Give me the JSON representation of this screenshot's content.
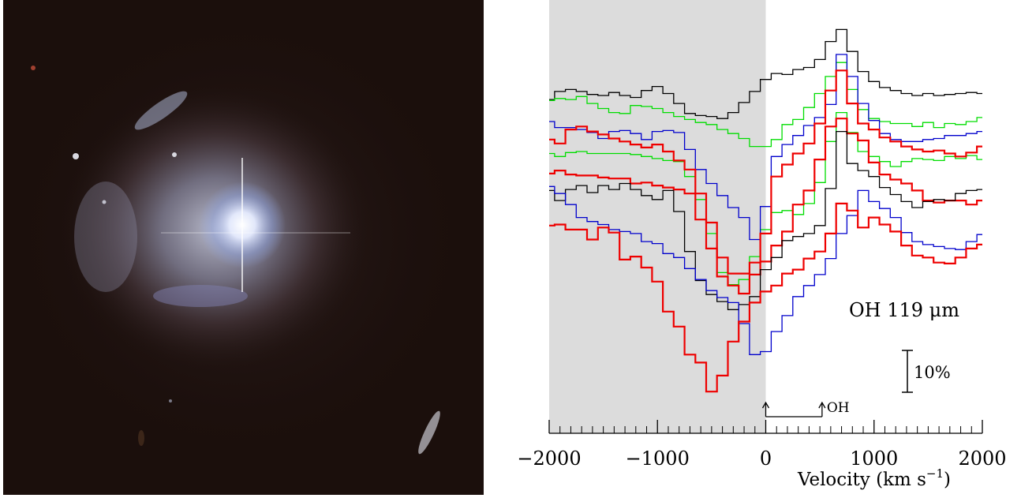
{
  "photo": {
    "description_icon": "galaxy-image"
  },
  "chart_data": {
    "type": "line",
    "style": "step",
    "xlabel": "Velocity (km s",
    "xlabel_superscript": "−1",
    "xlabel_close": ")",
    "xlim": [
      -2000,
      2000
    ],
    "xticks": [
      -2000,
      -1000,
      0,
      1000,
      2000
    ],
    "xtick_labels": [
      "−2000",
      "−1000",
      "0",
      "1000",
      "2000"
    ],
    "shaded_region": [
      -2000,
      0
    ],
    "shaded_color": "#dcdcdc",
    "annotation_line": "OH 119 μm",
    "scale_bar_label": "10%",
    "marker_label": "OH",
    "marker_positions": [
      0,
      520
    ],
    "yaxis_visible": false,
    "grid": false,
    "series": [
      {
        "color": "#000000",
        "width": 1.3,
        "x": [
          -2000,
          -1900,
          -1800,
          -1700,
          -1600,
          -1500,
          -1400,
          -1300,
          -1200,
          -1100,
          -1000,
          -900,
          -800,
          -700,
          -600,
          -500,
          -400,
          -300,
          -200,
          -100,
          0,
          100,
          200,
          300,
          400,
          500,
          600,
          700,
          800,
          900,
          1000,
          1100,
          1200,
          1300,
          1400,
          1500,
          1600,
          1700,
          1800,
          1900,
          2000
        ],
        "y": [
          29.0,
          29.8,
          30.0,
          29.8,
          29.5,
          29.4,
          29.7,
          29.4,
          29.2,
          29.9,
          30.3,
          29.6,
          28.6,
          27.6,
          27.4,
          27.3,
          27.1,
          27.7,
          28.7,
          29.8,
          31.0,
          31.6,
          31.5,
          32.0,
          32.2,
          33.0,
          34.8,
          36.0,
          33.8,
          31.8,
          30.8,
          30.2,
          29.9,
          29.6,
          29.4,
          29.6,
          29.4,
          29.5,
          29.6,
          29.7,
          29.6
        ]
      },
      {
        "color": "#00dd00",
        "width": 1.3,
        "x": [
          -2000,
          -1900,
          -1800,
          -1700,
          -1600,
          -1500,
          -1400,
          -1300,
          -1200,
          -1100,
          -1000,
          -900,
          -800,
          -700,
          -600,
          -500,
          -400,
          -300,
          -200,
          -100,
          0,
          100,
          200,
          300,
          400,
          500,
          600,
          700,
          800,
          900,
          1000,
          1100,
          1200,
          1300,
          1400,
          1500,
          1600,
          1700,
          1800,
          1900,
          2000
        ],
        "y": [
          28.9,
          29.1,
          29.0,
          29.3,
          28.6,
          28.1,
          27.7,
          27.6,
          28.4,
          28.3,
          28.1,
          27.7,
          27.3,
          27.0,
          26.7,
          26.5,
          26.0,
          25.6,
          25.1,
          24.3,
          24.3,
          25.0,
          26.5,
          27.0,
          28.2,
          29.6,
          31.3,
          32.7,
          30.0,
          28.0,
          27.1,
          26.8,
          26.6,
          26.6,
          26.3,
          26.7,
          26.2,
          26.6,
          26.5,
          26.8,
          27.2
        ]
      },
      {
        "color": "#00dd00",
        "width": 1.3,
        "x": [
          -2000,
          -1900,
          -1800,
          -1700,
          -1600,
          -1500,
          -1400,
          -1300,
          -1200,
          -1100,
          -1000,
          -900,
          -800,
          -700,
          -600,
          -500,
          -400,
          -300,
          -200,
          -100,
          0,
          100,
          200,
          300,
          400,
          500,
          600,
          700,
          800,
          900,
          1000,
          1100,
          1200,
          1300,
          1400,
          1500,
          1600,
          1700,
          1800,
          1900,
          2000
        ],
        "y": [
          23.6,
          23.3,
          23.7,
          23.8,
          23.6,
          23.6,
          23.6,
          23.6,
          23.5,
          23.3,
          23.1,
          22.9,
          22.8,
          21.3,
          19.0,
          15.6,
          11.7,
          10.5,
          11.0,
          13.3,
          16.0,
          17.7,
          17.9,
          17.5,
          18.6,
          20.7,
          24.8,
          27.7,
          25.7,
          23.8,
          23.3,
          22.8,
          22.3,
          22.8,
          23.1,
          23.0,
          22.9,
          23.3,
          23.1,
          23.4,
          23.0
        ]
      },
      {
        "color": "#0000cc",
        "width": 1.3,
        "x": [
          -2000,
          -1900,
          -1800,
          -1700,
          -1600,
          -1500,
          -1400,
          -1300,
          -1200,
          -1100,
          -1000,
          -900,
          -800,
          -700,
          -600,
          -500,
          -400,
          -300,
          -200,
          -100,
          0,
          100,
          200,
          300,
          400,
          500,
          600,
          700,
          800,
          900,
          1000,
          1100,
          1200,
          1300,
          1400,
          1500,
          1600,
          1700,
          1800,
          1900,
          2000
        ],
        "y": [
          26.8,
          26.2,
          26.2,
          26.0,
          25.7,
          25.1,
          25.8,
          25.9,
          25.6,
          25.0,
          25.8,
          25.9,
          25.7,
          24.0,
          22.0,
          20.6,
          19.4,
          18.2,
          17.2,
          15.0,
          18.3,
          23.3,
          24.5,
          25.4,
          26.4,
          27.2,
          28.5,
          33.5,
          31.3,
          28.6,
          26.9,
          25.6,
          25.0,
          24.8,
          24.8,
          25.0,
          25.1,
          25.4,
          25.4,
          25.6,
          25.8
        ]
      },
      {
        "color": "#ee0000",
        "width": 2.2,
        "x": [
          -2000,
          -1900,
          -1800,
          -1700,
          -1600,
          -1500,
          -1400,
          -1300,
          -1200,
          -1100,
          -1000,
          -900,
          -800,
          -700,
          -600,
          -500,
          -400,
          -300,
          -200,
          -100,
          0,
          100,
          200,
          300,
          400,
          500,
          600,
          700,
          800,
          900,
          1000,
          1100,
          1200,
          1300,
          1400,
          1500,
          1600,
          1700,
          1800,
          1900,
          2000
        ],
        "y": [
          25.0,
          24.6,
          26.0,
          26.3,
          25.8,
          25.5,
          25.1,
          24.8,
          24.5,
          24.2,
          24.5,
          23.8,
          22.9,
          22.0,
          19.6,
          16.7,
          13.2,
          11.6,
          11.6,
          12.7,
          15.6,
          21.3,
          22.5,
          23.6,
          24.6,
          26.6,
          29.9,
          31.9,
          28.6,
          26.6,
          26.0,
          25.2,
          24.8,
          24.3,
          24.0,
          23.8,
          23.9,
          23.6,
          23.3,
          23.7,
          24.3
        ]
      },
      {
        "color": "#ee0000",
        "width": 2.2,
        "x": [
          -2000,
          -1900,
          -1800,
          -1700,
          -1600,
          -1500,
          -1400,
          -1300,
          -1200,
          -1100,
          -1000,
          -900,
          -800,
          -700,
          -600,
          -500,
          -400,
          -300,
          -200,
          -100,
          0,
          100,
          200,
          300,
          400,
          500,
          600,
          700,
          800,
          900,
          1000,
          1100,
          1200,
          1300,
          1400,
          1500,
          1600,
          1700,
          1800,
          1900,
          2000
        ],
        "y": [
          21.6,
          21.9,
          21.5,
          21.4,
          21.4,
          21.2,
          21.1,
          21.1,
          20.6,
          20.7,
          20.4,
          20.2,
          20.0,
          19.6,
          17.0,
          14.1,
          11.3,
          10.4,
          9.6,
          11.5,
          12.8,
          14.4,
          15.8,
          18.5,
          19.9,
          23.0,
          26.3,
          27.1,
          25.6,
          24.9,
          22.7,
          21.5,
          21.0,
          20.6,
          19.9,
          18.9,
          18.7,
          18.9,
          18.9,
          18.5,
          18.9
        ]
      },
      {
        "color": "#000000",
        "width": 1.3,
        "x": [
          -2000,
          -1900,
          -1800,
          -1700,
          -1600,
          -1500,
          -1400,
          -1300,
          -1200,
          -1100,
          -1000,
          -900,
          -800,
          -700,
          -600,
          -500,
          -400,
          -300,
          -200,
          -100,
          0,
          100,
          200,
          300,
          400,
          500,
          600,
          700,
          800,
          900,
          1000,
          1100,
          1200,
          1300,
          1400,
          1500,
          1600,
          1700,
          1800,
          1900,
          2000
        ],
        "y": [
          19.9,
          18.9,
          20.0,
          20.4,
          19.7,
          20.4,
          20.0,
          20.6,
          20.0,
          19.4,
          19.0,
          19.9,
          17.8,
          13.8,
          10.9,
          9.5,
          8.8,
          8.0,
          8.5,
          9.3,
          12.0,
          13.2,
          14.9,
          15.3,
          15.6,
          16.4,
          20.1,
          25.8,
          22.6,
          21.9,
          21.3,
          20.2,
          19.5,
          18.8,
          18.2,
          18.8,
          19.0,
          18.9,
          19.6,
          19.9,
          20.0
        ]
      },
      {
        "color": "#0000cc",
        "width": 1.3,
        "x": [
          -2000,
          -1900,
          -1800,
          -1700,
          -1600,
          -1500,
          -1400,
          -1300,
          -1200,
          -1100,
          -1000,
          -900,
          -800,
          -700,
          -600,
          -500,
          -400,
          -300,
          -200,
          -100,
          0,
          100,
          200,
          300,
          400,
          500,
          600,
          700,
          800,
          900,
          1000,
          1100,
          1200,
          1300,
          1400,
          1500,
          1600,
          1700,
          1800,
          1900,
          2000
        ],
        "y": [
          20.3,
          19.6,
          18.5,
          17.2,
          16.8,
          16.5,
          16.0,
          15.8,
          15.6,
          14.8,
          14.6,
          13.6,
          13.2,
          12.1,
          11.0,
          9.9,
          9.2,
          8.7,
          6.6,
          3.5,
          3.8,
          5.8,
          7.4,
          9.3,
          10.4,
          11.5,
          13.1,
          15.6,
          17.4,
          19.9,
          18.8,
          18.1,
          17.2,
          15.7,
          14.8,
          14.5,
          14.3,
          14.1,
          14.0,
          14.8,
          15.5
        ]
      },
      {
        "color": "#ee0000",
        "width": 2.2,
        "x": [
          -2000,
          -1900,
          -1800,
          -1700,
          -1600,
          -1500,
          -1400,
          -1300,
          -1200,
          -1100,
          -1000,
          -900,
          -800,
          -700,
          -600,
          -500,
          -400,
          -300,
          -200,
          -100,
          0,
          100,
          200,
          300,
          400,
          500,
          600,
          700,
          800,
          900,
          1000,
          1100,
          1200,
          1300,
          1400,
          1500,
          1600,
          1700,
          1800,
          1900,
          2000
        ],
        "y": [
          16.4,
          16.5,
          16.0,
          16.0,
          15.0,
          16.2,
          15.7,
          13.0,
          13.3,
          12.2,
          10.8,
          7.8,
          6.3,
          3.5,
          2.7,
          -0.2,
          1.4,
          4.8,
          6.8,
          8.7,
          9.8,
          10.4,
          11.6,
          12.0,
          13.1,
          13.8,
          15.6,
          18.6,
          17.9,
          16.2,
          17.2,
          16.5,
          15.8,
          14.4,
          13.4,
          13.2,
          12.7,
          12.6,
          13.2,
          14.1,
          14.5
        ]
      }
    ]
  }
}
